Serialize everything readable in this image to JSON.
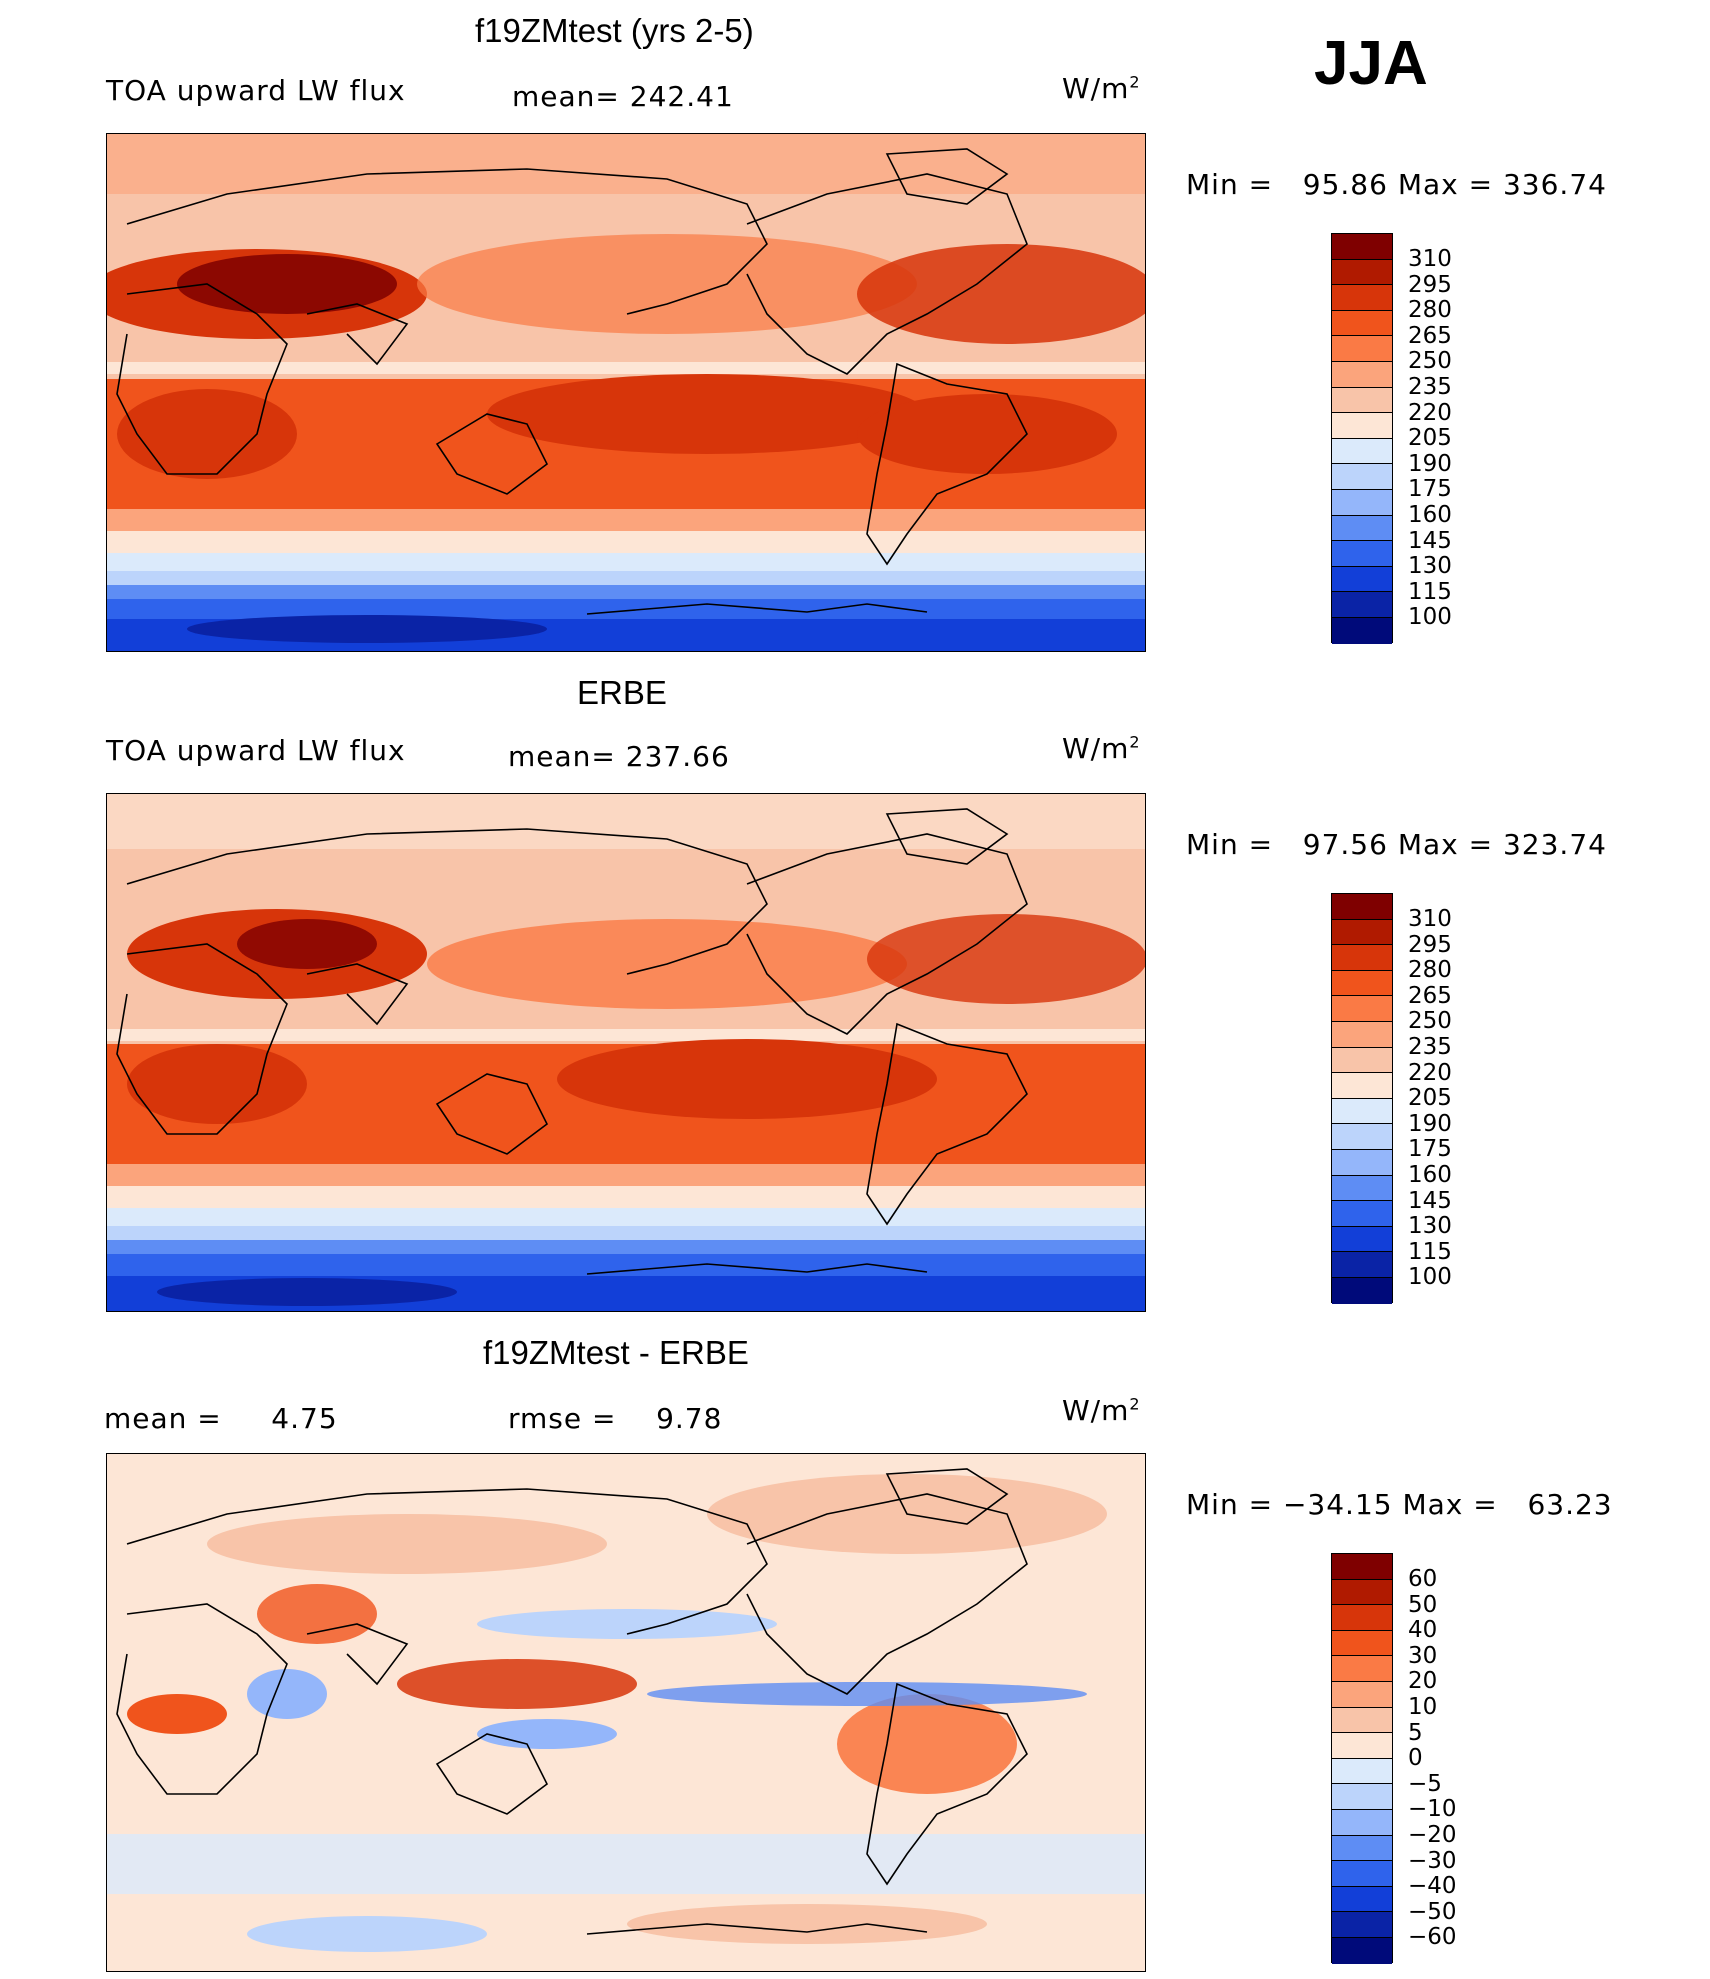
{
  "season": "JJA",
  "chart_data": [
    {
      "type": "heatmap",
      "title": "f19ZMtest (yrs 2-5)",
      "variable": "TOA upward LW flux",
      "mean_label": "mean=",
      "mean": "242.41",
      "units": "W/m",
      "units_sup": "2",
      "min_label": "Min  =",
      "min": "95.86",
      "max_label": "Max  =",
      "max": "336.74",
      "levels": [
        "310",
        "295",
        "280",
        "265",
        "250",
        "235",
        "220",
        "205",
        "190",
        "175",
        "160",
        "145",
        "130",
        "115",
        "100"
      ],
      "colors": [
        "#7f0000",
        "#b01a00",
        "#d7350a",
        "#f0541c",
        "#fa7a45",
        "#fba47c",
        "#f8c4a9",
        "#fde6d6",
        "#dbeafb",
        "#bcd4fb",
        "#94b6fa",
        "#5e8df4",
        "#2f63ec",
        "#123fd8",
        "#0a23a6",
        "#000a7a"
      ]
    },
    {
      "type": "heatmap",
      "title": "ERBE",
      "variable": "TOA upward LW flux",
      "mean_label": "mean=",
      "mean": "237.66",
      "units": "W/m",
      "units_sup": "2",
      "min_label": "Min  =",
      "min": "97.56",
      "max_label": "Max  =",
      "max": "323.74",
      "levels": [
        "310",
        "295",
        "280",
        "265",
        "250",
        "235",
        "220",
        "205",
        "190",
        "175",
        "160",
        "145",
        "130",
        "115",
        "100"
      ],
      "colors": [
        "#7f0000",
        "#b01a00",
        "#d7350a",
        "#f0541c",
        "#fa7a45",
        "#fba47c",
        "#f8c4a9",
        "#fde6d6",
        "#dbeafb",
        "#bcd4fb",
        "#94b6fa",
        "#5e8df4",
        "#2f63ec",
        "#123fd8",
        "#0a23a6",
        "#000a7a"
      ]
    },
    {
      "type": "heatmap",
      "title": "f19ZMtest - ERBE",
      "mean_label": "mean  =",
      "mean": "4.75",
      "rmse_label": "rmse  =",
      "rmse": "9.78",
      "units": "W/m",
      "units_sup": "2",
      "min_label": "Min  =",
      "min": "−34.15",
      "max_label": "Max  =",
      "max": "63.23",
      "levels": [
        "60",
        "50",
        "40",
        "30",
        "20",
        "10",
        "5",
        "0",
        "−5",
        "−10",
        "−20",
        "−30",
        "−40",
        "−50",
        "−60"
      ],
      "colors": [
        "#7f0000",
        "#b01a00",
        "#d7350a",
        "#f0541c",
        "#fa7a45",
        "#fba47c",
        "#f8c4a9",
        "#fde6d6",
        "#dbeafb",
        "#bcd4fb",
        "#94b6fa",
        "#5e8df4",
        "#2f63ec",
        "#123fd8",
        "#0a23a6",
        "#000a7a"
      ]
    }
  ]
}
